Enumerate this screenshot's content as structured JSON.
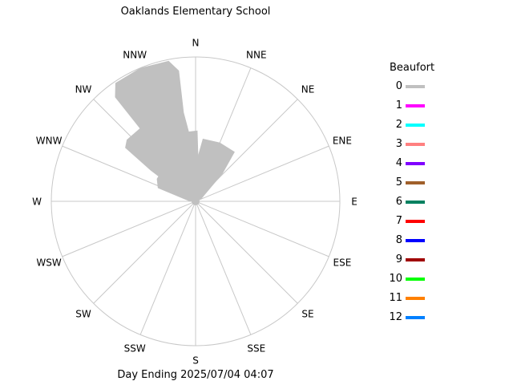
{
  "title": "Oaklands Elementary School",
  "footer": "Day Ending 2025/07/04 04:07",
  "chart_data": {
    "type": "windrose",
    "directions": [
      "N",
      "NNE",
      "NE",
      "ENE",
      "E",
      "ESE",
      "SE",
      "SSE",
      "S",
      "SSW",
      "SW",
      "WSW",
      "W",
      "WNW",
      "NW",
      "NNW"
    ],
    "rings": 1,
    "legend_title": "Beaufort",
    "legend": [
      {
        "label": "0",
        "color": "#c0c0c0"
      },
      {
        "label": "1",
        "color": "#ff00ff"
      },
      {
        "label": "2",
        "color": "#00ffff"
      },
      {
        "label": "3",
        "color": "#ff8080"
      },
      {
        "label": "4",
        "color": "#8000ff"
      },
      {
        "label": "5",
        "color": "#a0602a"
      },
      {
        "label": "6",
        "color": "#008060"
      },
      {
        "label": "7",
        "color": "#ff0000"
      },
      {
        "label": "8",
        "color": "#0000ff"
      },
      {
        "label": "9",
        "color": "#a00000"
      },
      {
        "label": "10",
        "color": "#00ff00"
      },
      {
        "label": "11",
        "color": "#ff8000"
      },
      {
        "label": "12",
        "color": "#0080ff"
      }
    ],
    "petals": [
      {
        "bearing": 337.5,
        "beaufort": 0,
        "profile": [
          [
            0.04,
            0.04
          ],
          [
            0.3,
            0.12
          ],
          [
            0.6,
            0.16
          ],
          [
            0.88,
            0.24
          ],
          [
            0.97,
            0.2
          ],
          [
            1.0,
            0.0
          ]
        ]
      },
      {
        "bearing": 326.25,
        "beaufort": 0,
        "profile": [
          [
            0.03,
            0.03
          ],
          [
            0.35,
            0.14
          ],
          [
            0.58,
            0.2
          ],
          [
            0.62,
            0.16
          ],
          [
            0.64,
            0.0
          ]
        ]
      },
      {
        "bearing": 345.0,
        "beaufort": 0,
        "profile": [
          [
            0.03,
            0.03
          ],
          [
            0.3,
            0.1
          ],
          [
            0.47,
            0.14
          ],
          [
            0.49,
            0.0
          ]
        ]
      },
      {
        "bearing": 315.0,
        "beaufort": 0,
        "profile": [
          [
            0.03,
            0.03
          ],
          [
            0.25,
            0.12
          ],
          [
            0.3,
            0.08
          ],
          [
            0.32,
            0.0
          ]
        ]
      },
      {
        "bearing": 22.5,
        "beaufort": 0,
        "profile": [
          [
            0.03,
            0.03
          ],
          [
            0.25,
            0.1
          ],
          [
            0.42,
            0.12
          ],
          [
            0.44,
            0.0
          ]
        ]
      }
    ]
  }
}
